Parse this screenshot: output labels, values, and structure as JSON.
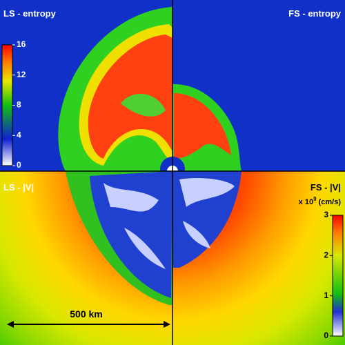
{
  "panels": [
    {
      "label": "LS - entropy"
    },
    {
      "label": "FS - entropy"
    },
    {
      "label": "LS - |V|"
    },
    {
      "label": "FS - |V|"
    }
  ],
  "colorbars": [
    {
      "range": [
        0,
        16
      ],
      "ticks": [
        0,
        4,
        8,
        12,
        16
      ]
    },
    {
      "range": [
        0,
        3
      ],
      "ticks": [
        0,
        1,
        2,
        3
      ],
      "unit_prefix": "x 10",
      "unit_exponent": "9",
      "unit_suffix": "(cm/s)"
    }
  ],
  "scale_bar": {
    "label": "500 km"
  }
}
